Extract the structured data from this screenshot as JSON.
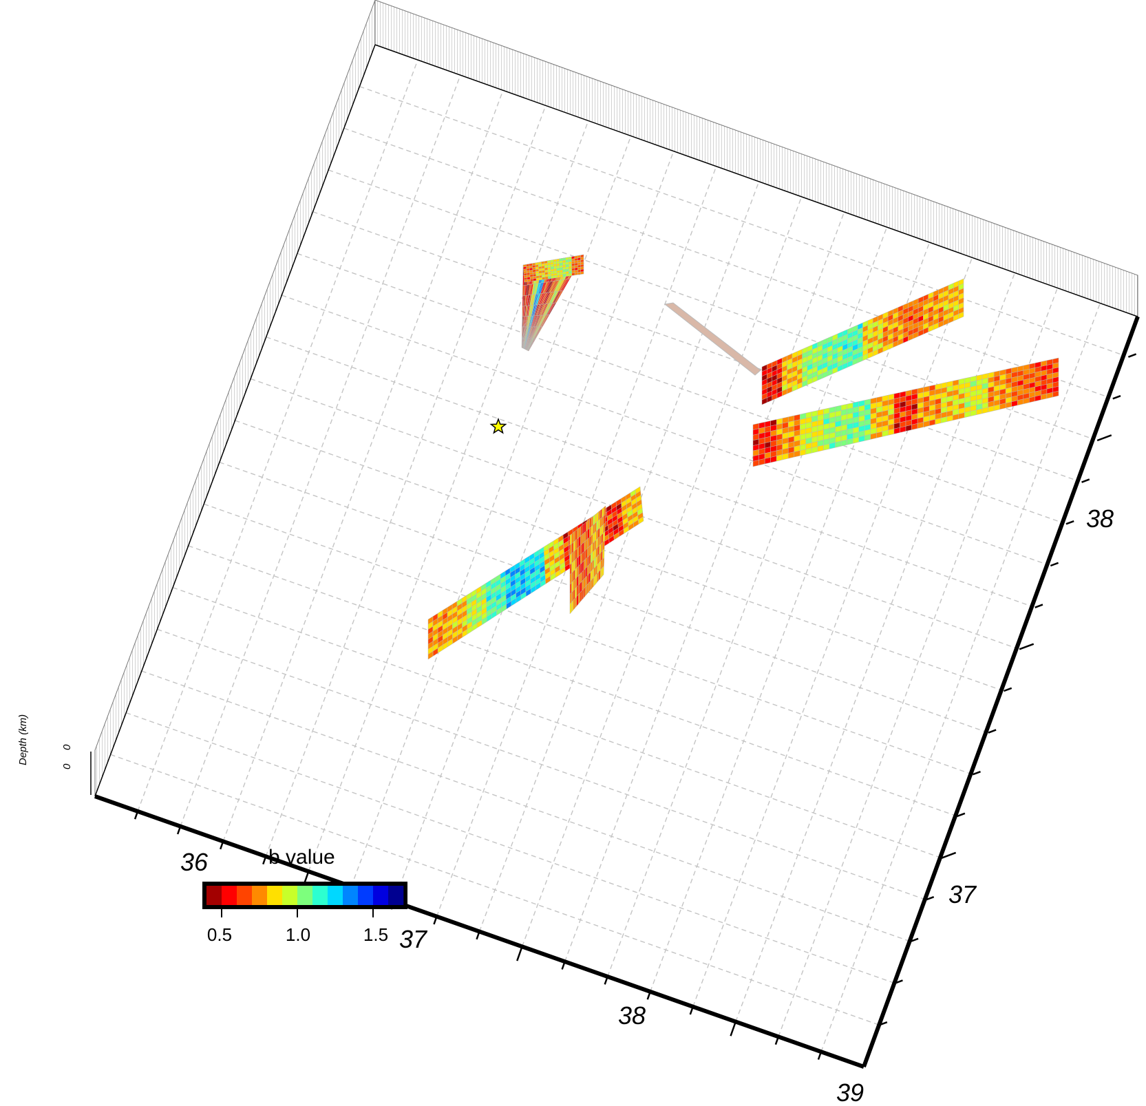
{
  "chart_data": {
    "type": "heatmap",
    "title": "",
    "x_axis": {
      "ticks": [
        36,
        37,
        38,
        39
      ],
      "labels": [
        "36",
        "37",
        "38",
        "39"
      ]
    },
    "y_axis": {
      "ticks": [
        37,
        38
      ],
      "labels": [
        "37",
        "38"
      ]
    },
    "z_axis": {
      "label": "Depth (km)",
      "tick_labels": [
        "0",
        "0"
      ]
    },
    "grid": true,
    "colorbar": {
      "title": "b value",
      "range": [
        0.4,
        1.7
      ],
      "tick_values": [
        0.5,
        1.0,
        1.5
      ],
      "tick_labels": [
        "0.5",
        "1.0",
        "1.5"
      ],
      "colors": [
        "#a30000",
        "#ff0000",
        "#ff4400",
        "#ff8a00",
        "#ffe000",
        "#c8ff2a",
        "#7dff7d",
        "#2dffd0",
        "#00d8ff",
        "#0085ff",
        "#003cff",
        "#0000e0",
        "#000090"
      ]
    },
    "epicenter_marker": {
      "symbol": "star",
      "color": "#ffff00"
    },
    "fault_segments": [
      {
        "name": "",
        "b_values": [
          0.55,
          0.6,
          0.9,
          1.3,
          0.6,
          0.55,
          0.7,
          0.9,
          0.6
        ]
      },
      {
        "name": "",
        "b_values": [
          0.7,
          0.8,
          0.9,
          0.95,
          0.7
        ]
      },
      {
        "name": "",
        "b_values": [
          0.55,
          0.8,
          1.0,
          1.05,
          1.1,
          0.85,
          0.75,
          0.7,
          0.75,
          0.8
        ]
      },
      {
        "name": "",
        "b_values": [
          0.6,
          0.75,
          0.9,
          1.0,
          1.05,
          0.8,
          0.6,
          0.75,
          0.85,
          0.9,
          0.75,
          0.7,
          0.65
        ]
      },
      {
        "name": "",
        "b_values": [
          0.75,
          0.8,
          0.95,
          1.1,
          1.25,
          1.2,
          0.85,
          0.6,
          0.55,
          0.6,
          0.8
        ]
      },
      {
        "name": "",
        "b_values": [
          0.75,
          0.65,
          0.7,
          0.8,
          0.75
        ]
      }
    ]
  }
}
